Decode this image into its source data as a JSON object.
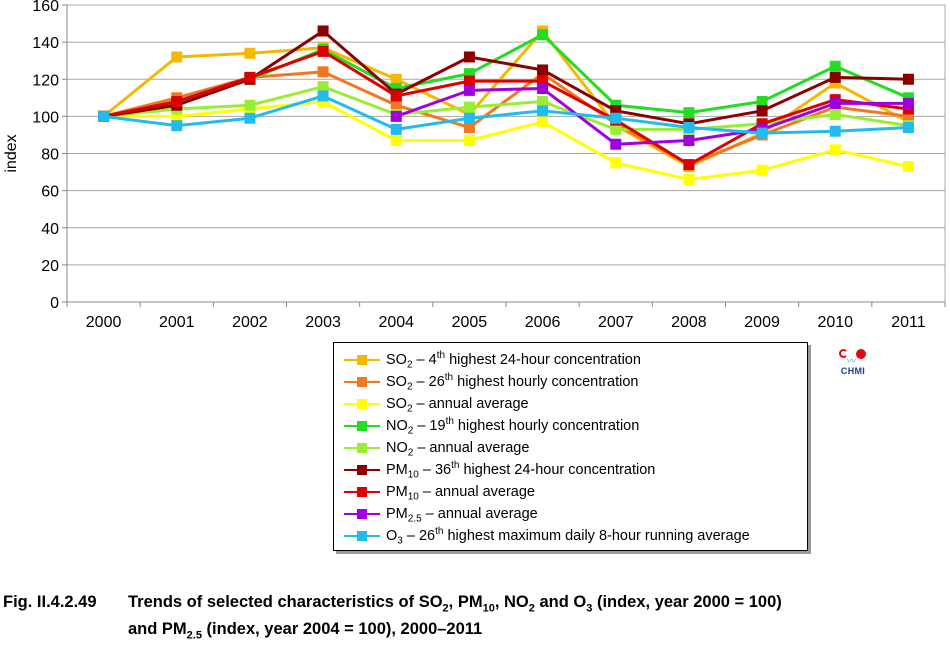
{
  "chart_data": {
    "type": "line",
    "ylabel": "index",
    "xlabel": "",
    "ylim": [
      0,
      160
    ],
    "yticks": [
      "0",
      "20",
      "40",
      "60",
      "80",
      "100",
      "120",
      "140",
      "160"
    ],
    "categories": [
      "2000",
      "2001",
      "2002",
      "2003",
      "2004",
      "2005",
      "2006",
      "2007",
      "2008",
      "2009",
      "2010",
      "2011"
    ],
    "grid": "horizontal",
    "legend_position": "bottom-center",
    "series": [
      {
        "key": "so2-4th",
        "color": "#f5b800",
        "values": [
          100,
          132,
          134,
          137,
          120,
          101,
          146,
          95,
          73,
          91,
          118,
          97
        ]
      },
      {
        "key": "so2-26th",
        "color": "#f07820",
        "values": [
          100,
          110,
          121,
          124,
          106,
          94,
          123,
          96,
          74,
          90,
          105,
          100
        ]
      },
      {
        "key": "so2-annual",
        "color": "#ffff00",
        "values": [
          100,
          100,
          104,
          108,
          87,
          87,
          97,
          75,
          66,
          71,
          82,
          73
        ]
      },
      {
        "key": "no2-19th",
        "color": "#22dd22",
        "values": [
          100,
          107,
          120,
          136,
          115,
          123,
          144,
          106,
          102,
          108,
          127,
          110
        ]
      },
      {
        "key": "no2-annual",
        "color": "#99ee33",
        "values": [
          100,
          104,
          106,
          116,
          101,
          105,
          108,
          93,
          93,
          96,
          101,
          95
        ]
      },
      {
        "key": "pm10-36th",
        "color": "#8b0000",
        "values": [
          100,
          106,
          120,
          146,
          112,
          132,
          125,
          103,
          96,
          103,
          121,
          120
        ]
      },
      {
        "key": "pm10-annual",
        "color": "#dd0000",
        "values": [
          100,
          108,
          121,
          135,
          111,
          119,
          119,
          98,
          74,
          96,
          109,
          104
        ]
      },
      {
        "key": "pm25-annual",
        "color": "#a000e0",
        "values": [
          null,
          null,
          null,
          null,
          100,
          114,
          115,
          85,
          87,
          93,
          107,
          107
        ]
      },
      {
        "key": "o3-26th",
        "color": "#22bbee",
        "values": [
          100,
          95,
          99,
          111,
          93,
          99,
          103,
          99,
          94,
          91,
          92,
          94
        ]
      }
    ]
  },
  "legend": [
    {
      "pre": "SO",
      "sub": "2",
      "mid": "  – 4",
      "sup": "th",
      "post": " highest 24-hour concentration",
      "color": "#f5b800"
    },
    {
      "pre": "SO",
      "sub": "2",
      "mid": "  – 26",
      "sup": "th",
      "post": " highest hourly concentration",
      "color": "#f07820"
    },
    {
      "pre": "SO",
      "sub": "2",
      "mid": "  – annual average",
      "sup": "",
      "post": "",
      "color": "#ffff00"
    },
    {
      "pre": "NO",
      "sub": "2",
      "mid": " – 19",
      "sup": "th",
      "post": " highest hourly concentration",
      "color": "#22dd22"
    },
    {
      "pre": "NO",
      "sub": "2",
      "mid": " – annual average",
      "sup": "",
      "post": "",
      "color": "#99ee33"
    },
    {
      "pre": "PM",
      "sub": "10",
      "mid": " – 36",
      "sup": "th",
      "post": " highest 24-hour concentration",
      "color": "#8b0000"
    },
    {
      "pre": "PM",
      "sub": "10",
      "mid": " – annual average",
      "sup": "",
      "post": "",
      "color": "#dd0000"
    },
    {
      "pre": "PM",
      "sub": "2.5",
      "mid": " – annual average",
      "sup": "",
      "post": "",
      "color": "#a000e0"
    },
    {
      "pre": "O",
      "sub": "3",
      "mid": " – 26",
      "sup": "th",
      "post": " highest maximum daily 8-hour running average",
      "color": "#22bbee"
    }
  ],
  "logo": {
    "text": "CHMI",
    "wave": "〰"
  },
  "caption": {
    "number": "Fig. II.4.2.49",
    "l1_a": "Trends of selected characteristics of SO",
    "l1_s1": "2",
    "l1_b": ", PM",
    "l1_s2": "10",
    "l1_c": ", NO",
    "l1_s3": "2",
    "l1_d": " and O",
    "l1_s4": "3",
    "l1_e": " (index, year 2000 = 100)",
    "l2_a": "and PM",
    "l2_s1": "2.5",
    "l2_b": " (index, year 2004 = 100), 2000–2011"
  }
}
